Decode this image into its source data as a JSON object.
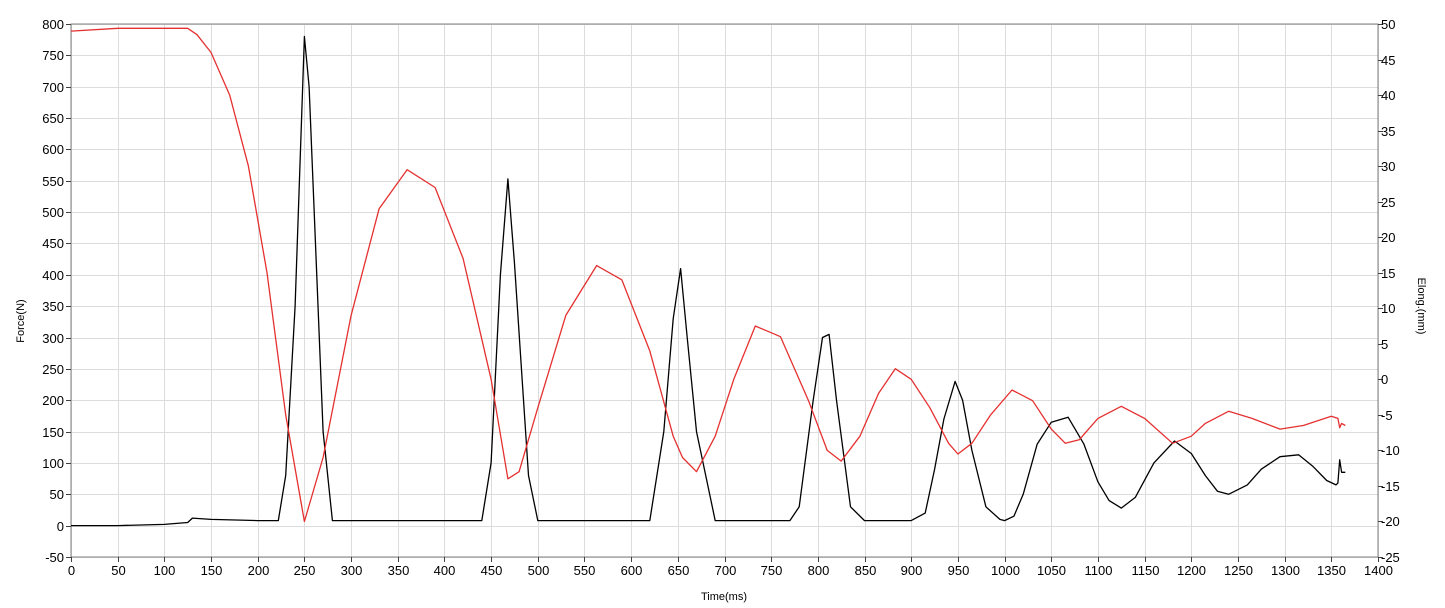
{
  "chart_data": {
    "type": "line",
    "title": "",
    "xlabel": "Time(ms)",
    "ylabel": "Force(N)",
    "y2label": "Elong.(mm)",
    "xlim": [
      0,
      1400
    ],
    "ylim": [
      -50,
      800
    ],
    "y2lim": [
      -25,
      50
    ],
    "grid": true,
    "x_ticks": [
      0,
      50,
      100,
      150,
      200,
      250,
      300,
      350,
      400,
      450,
      500,
      550,
      600,
      650,
      700,
      750,
      800,
      850,
      900,
      950,
      1000,
      1050,
      1100,
      1150,
      1200,
      1250,
      1300,
      1350,
      1400
    ],
    "y_ticks": [
      -50,
      0,
      50,
      100,
      150,
      200,
      250,
      300,
      350,
      400,
      450,
      500,
      550,
      600,
      650,
      700,
      750,
      800
    ],
    "y2_ticks": [
      -25,
      -20,
      -15,
      -10,
      -5,
      0,
      5,
      10,
      15,
      20,
      25,
      30,
      35,
      40,
      45,
      50
    ],
    "series": [
      {
        "axis": "left",
        "color": "#000000",
        "x": [
          0,
          50,
          100,
          125,
          130,
          150,
          200,
          222,
          230,
          240,
          250,
          255,
          260,
          270,
          280,
          300,
          350,
          400,
          440,
          450,
          460,
          468,
          475,
          490,
          500,
          550,
          600,
          620,
          635,
          645,
          653,
          660,
          670,
          690,
          700,
          750,
          770,
          780,
          795,
          805,
          812,
          820,
          835,
          850,
          860,
          900,
          915,
          925,
          935,
          947,
          955,
          965,
          980,
          995,
          1000,
          1010,
          1020,
          1035,
          1050,
          1068,
          1085,
          1100,
          1112,
          1125,
          1140,
          1160,
          1182,
          1200,
          1215,
          1228,
          1240,
          1260,
          1275,
          1295,
          1315,
          1330,
          1345,
          1355,
          1357,
          1359,
          1361,
          1363,
          1365
        ],
        "values": [
          0,
          0,
          2,
          5,
          12,
          10,
          8,
          8,
          80,
          350,
          780,
          700,
          520,
          150,
          8,
          8,
          8,
          8,
          8,
          100,
          400,
          553,
          420,
          80,
          8,
          8,
          8,
          8,
          150,
          330,
          410,
          300,
          150,
          8,
          8,
          8,
          8,
          30,
          200,
          300,
          305,
          200,
          30,
          8,
          8,
          8,
          20,
          90,
          170,
          230,
          200,
          120,
          30,
          10,
          8,
          15,
          50,
          130,
          165,
          173,
          130,
          70,
          40,
          28,
          45,
          100,
          135,
          115,
          80,
          55,
          50,
          65,
          90,
          110,
          113,
          95,
          72,
          65,
          68,
          105,
          85,
          85,
          85
        ]
      },
      {
        "axis": "right",
        "color": "#e53030",
        "x": [
          0,
          50,
          100,
          125,
          135,
          150,
          170,
          190,
          210,
          230,
          250,
          270,
          300,
          330,
          360,
          390,
          420,
          450,
          468,
          480,
          500,
          530,
          563,
          590,
          620,
          645,
          655,
          670,
          690,
          710,
          733,
          760,
          790,
          810,
          825,
          845,
          865,
          883,
          900,
          920,
          940,
          950,
          965,
          985,
          1008,
          1030,
          1050,
          1065,
          1080,
          1100,
          1125,
          1150,
          1180,
          1200,
          1215,
          1240,
          1265,
          1295,
          1320,
          1350,
          1357,
          1359,
          1361,
          1365
        ],
        "values": [
          49,
          49.4,
          49.4,
          49.4,
          48.5,
          46,
          40,
          30,
          15,
          -5,
          -20,
          -11,
          9,
          24,
          29.5,
          27,
          17,
          0,
          -14,
          -13,
          -4,
          9,
          16,
          14,
          4,
          -8,
          -11,
          -13,
          -8,
          0,
          7.5,
          6,
          -3,
          -10,
          -11.5,
          -8,
          -2,
          1.5,
          0,
          -4,
          -9,
          -10.5,
          -9,
          -5,
          -1.5,
          -3,
          -7,
          -9,
          -8.5,
          -5.5,
          -3.8,
          -5.5,
          -9,
          -8,
          -6.2,
          -4.5,
          -5.5,
          -7,
          -6.5,
          -5.2,
          -5.5,
          -6.8,
          -6.2,
          -6.5
        ]
      }
    ]
  }
}
